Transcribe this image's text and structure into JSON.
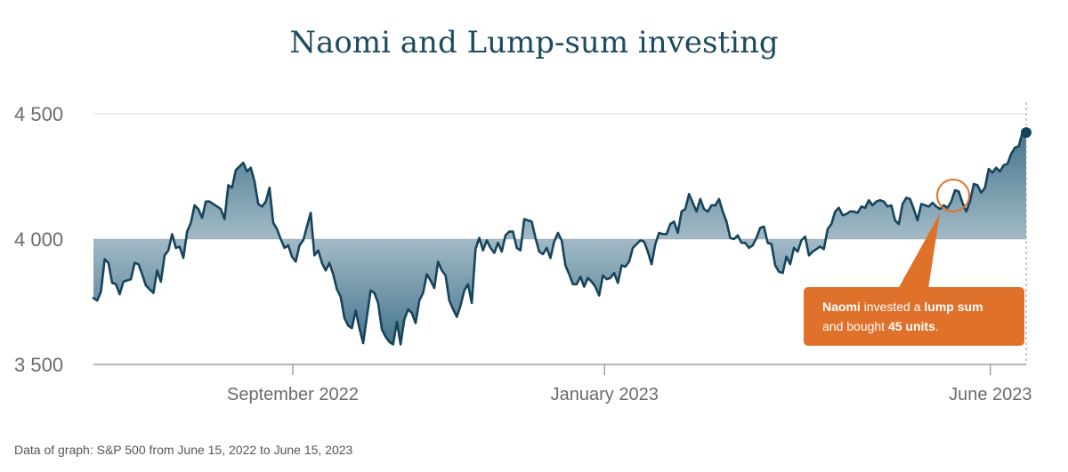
{
  "title": "Naomi and Lump-sum investing",
  "source_note": "Data of graph: S&P 500 from June 15, 2022 to June 15, 2023",
  "callout": {
    "name": "Naomi",
    "text1": " invested a ",
    "emphasis1": "lump sum",
    "text2": "and bought ",
    "emphasis2": "45 units",
    "text3": "."
  },
  "colors": {
    "line": "#16445c",
    "area_top": "#3d6e87",
    "accent": "#e0712a",
    "grid": "#dcdcdc"
  },
  "chart_data": {
    "type": "area",
    "title": "Naomi and Lump-sum investing",
    "ylim": [
      3500,
      4500
    ],
    "baseline": 4000,
    "y_ticks": [
      4500,
      4000,
      3500
    ],
    "y_tick_labels": [
      "4 500",
      "4 000",
      "3 500"
    ],
    "x_tick_labels": [
      "September 2022",
      "January 2023",
      "June 2023"
    ],
    "x_tick_dates": [
      "2022-09-01",
      "2023-01-01",
      "2023-06-01"
    ],
    "x_range": [
      "2022-06-15",
      "2023-06-15"
    ],
    "grid": true,
    "series": [
      {
        "values": [
          3765,
          3755,
          3790,
          3920,
          3905,
          3825,
          3820,
          3780,
          3830,
          3835,
          3840,
          3905,
          3900,
          3860,
          3815,
          3800,
          3785,
          3875,
          3830,
          3935,
          3955,
          4020,
          3965,
          3970,
          3925,
          4030,
          4065,
          4135,
          4120,
          4085,
          4150,
          4150,
          4140,
          4130,
          4120,
          4080,
          4215,
          4205,
          4275,
          4290,
          4305,
          4270,
          4285,
          4230,
          4140,
          4130,
          4150,
          4205,
          4065,
          4040,
          4000,
          3965,
          3975,
          3930,
          3910,
          3975,
          3995,
          4050,
          4105,
          3935,
          3955,
          3905,
          3875,
          3905,
          3860,
          3800,
          3770,
          3685,
          3655,
          3645,
          3715,
          3645,
          3585,
          3690,
          3795,
          3785,
          3745,
          3640,
          3610,
          3590,
          3580,
          3670,
          3580,
          3680,
          3720,
          3705,
          3665,
          3755,
          3785,
          3860,
          3835,
          3805,
          3910,
          3875,
          3855,
          3755,
          3720,
          3690,
          3735,
          3795,
          3820,
          3745,
          3960,
          4005,
          3955,
          3995,
          3965,
          3945,
          3985,
          3950,
          4015,
          4030,
          4030,
          3965,
          3955,
          4080,
          4075,
          4070,
          4005,
          3950,
          3940,
          3965,
          3925,
          3990,
          4025,
          3995,
          3895,
          3860,
          3820,
          3820,
          3850,
          3810,
          3845,
          3830,
          3810,
          3775,
          3855,
          3840,
          3845,
          3865,
          3825,
          3895,
          3890,
          3910,
          3965,
          3980,
          3995,
          3990,
          3950,
          3900,
          3980,
          4025,
          4020,
          4020,
          4060,
          4070,
          4025,
          4110,
          4120,
          4180,
          4145,
          4110,
          4160,
          4120,
          4110,
          4135,
          4135,
          4160,
          4110,
          4070,
          4005,
          4000,
          4015,
          3985,
          3985,
          3965,
          3975,
          4005,
          4045,
          4050,
          3985,
          3980,
          3895,
          3870,
          3865,
          3930,
          3900,
          3965,
          3950,
          3995,
          4010,
          3935,
          3950,
          3960,
          3970,
          3960,
          4040,
          4060,
          4110,
          4125,
          4095,
          4100,
          4110,
          4110,
          4105,
          4130,
          4125,
          4155,
          4135,
          4150,
          4155,
          4150,
          4130,
          4135,
          4075,
          4060,
          4140,
          4165,
          4160,
          4120,
          4075,
          4140,
          4135,
          4130,
          4145,
          4130,
          4120,
          4135,
          4125,
          4150,
          4195,
          4190,
          4145,
          4110,
          4150,
          4220,
          4215,
          4185,
          4205,
          4280,
          4265,
          4285,
          4270,
          4295,
          4300,
          4340,
          4365,
          4370,
          4425,
          4425
        ]
      }
    ]
  }
}
